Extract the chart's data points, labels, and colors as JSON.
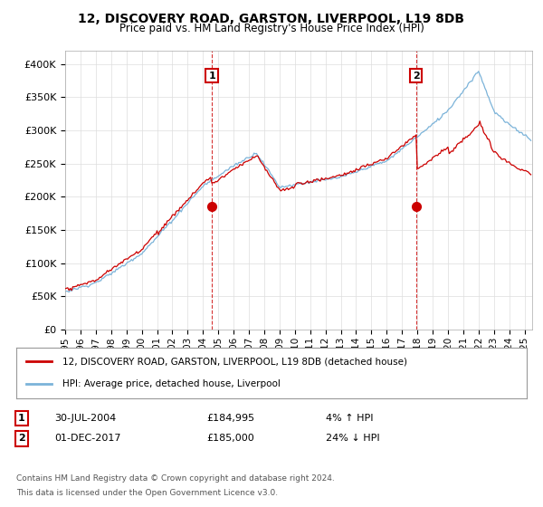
{
  "title": "12, DISCOVERY ROAD, GARSTON, LIVERPOOL, L19 8DB",
  "subtitle": "Price paid vs. HM Land Registry's House Price Index (HPI)",
  "ylabel_ticks": [
    "£0",
    "£50K",
    "£100K",
    "£150K",
    "£200K",
    "£250K",
    "£300K",
    "£350K",
    "£400K"
  ],
  "ytick_values": [
    0,
    50000,
    100000,
    150000,
    200000,
    250000,
    300000,
    350000,
    400000
  ],
  "ylim": [
    0,
    420000
  ],
  "xlim_start": 1995.0,
  "xlim_end": 2025.5,
  "sale1_x": 2004.58,
  "sale1_y": 184995,
  "sale2_x": 2017.92,
  "sale2_y": 185000,
  "line1_color": "#cc0000",
  "line2_color": "#7bb3d9",
  "marker_color": "#cc0000",
  "annotation_box_color": "#cc0000",
  "legend_line1": "12, DISCOVERY ROAD, GARSTON, LIVERPOOL, L19 8DB (detached house)",
  "legend_line2": "HPI: Average price, detached house, Liverpool",
  "table_row1_num": "1",
  "table_row1_date": "30-JUL-2004",
  "table_row1_price": "£184,995",
  "table_row1_hpi": "4% ↑ HPI",
  "table_row2_num": "2",
  "table_row2_date": "01-DEC-2017",
  "table_row2_price": "£185,000",
  "table_row2_hpi": "24% ↓ HPI",
  "footnote_line1": "Contains HM Land Registry data © Crown copyright and database right 2024.",
  "footnote_line2": "This data is licensed under the Open Government Licence v3.0.",
  "background_color": "#ffffff",
  "grid_color": "#dddddd"
}
